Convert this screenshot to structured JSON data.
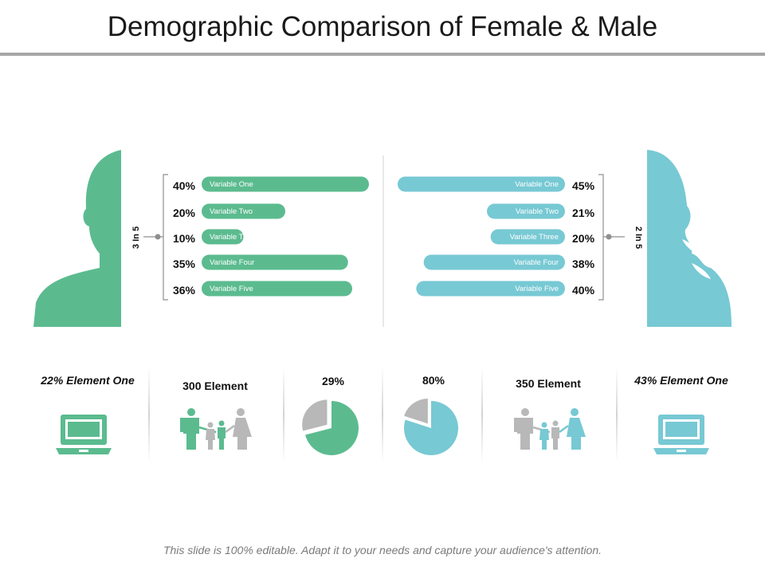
{
  "title": "Demographic Comparison of Female & Male",
  "footer": "This slide is 100% editable. Adapt it to your needs and capture your audience's attention.",
  "colors": {
    "male": "#5bbb8f",
    "female": "#77c9d4",
    "neutral": "#b8b8b8"
  },
  "chart_data": [
    {
      "type": "bar",
      "title": "Male",
      "ratio_label": "3 In 5",
      "categories": [
        "Variable One",
        "Variable Two",
        "Variable Three",
        "Variable Four",
        "Variable Five"
      ],
      "values": [
        40,
        20,
        10,
        35,
        36
      ],
      "value_labels": [
        "40%",
        "20%",
        "10%",
        "35%",
        "36%"
      ],
      "xlim": [
        0,
        40
      ],
      "orientation": "horizontal"
    },
    {
      "type": "bar",
      "title": "Female",
      "ratio_label": "2 In 5",
      "categories": [
        "Variable One",
        "Variable Two",
        "Variable Three",
        "Variable Four",
        "Variable Five"
      ],
      "values": [
        45,
        21,
        20,
        38,
        40
      ],
      "value_labels": [
        "45%",
        "21%",
        "20%",
        "38%",
        "40%"
      ],
      "xlim": [
        0,
        45
      ],
      "orientation": "horizontal"
    },
    {
      "type": "pie",
      "title": "29%",
      "values": [
        29,
        71
      ],
      "highlight_index": 1
    },
    {
      "type": "pie",
      "title": "80%",
      "values": [
        80,
        20
      ],
      "highlight_index": 0
    }
  ],
  "stats": {
    "male_element": "22% Element One",
    "male_family": "300 Element",
    "female_family": "350 Element",
    "female_element": "43% Element One"
  },
  "icons": {
    "male_head": "male-head-silhouette-icon",
    "female_head": "female-head-silhouette-icon",
    "laptop": "laptop-icon",
    "family": "family-icon"
  }
}
